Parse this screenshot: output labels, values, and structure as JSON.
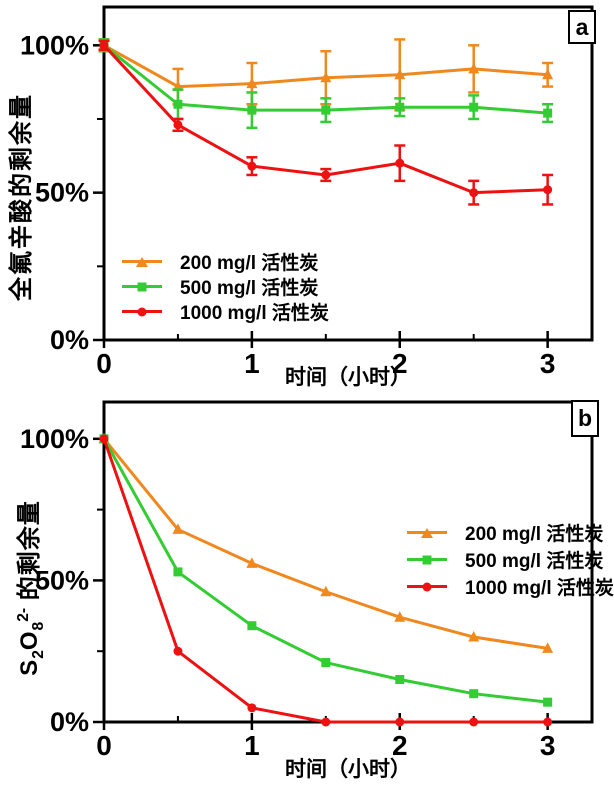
{
  "chart_data": [
    {
      "type": "line",
      "panel_label": "a",
      "title": "",
      "xlabel": "时间（小时）",
      "ylabel": "全氟辛酸的剩余量",
      "x": [
        0,
        0.5,
        1,
        1.5,
        2,
        2.5,
        3
      ],
      "xlim": [
        0,
        3.3
      ],
      "ylim": [
        0,
        113
      ],
      "grid": false,
      "legend_position": "lower-left",
      "xticks": [
        {
          "v": 0,
          "label": "0"
        },
        {
          "v": 1,
          "label": "1"
        },
        {
          "v": 2,
          "label": "2"
        },
        {
          "v": 3,
          "label": "3"
        }
      ],
      "xticks_minor": [
        0.5,
        1.5,
        2.5
      ],
      "yticks": [
        {
          "v": 0,
          "label": "0%"
        },
        {
          "v": 50,
          "label": "50%"
        },
        {
          "v": 100,
          "label": "100%"
        }
      ],
      "yticks_minor": [
        25,
        75
      ],
      "series": [
        {
          "name": "200 mg/l 活性炭",
          "color": "#F0881E",
          "marker": "triangle",
          "values": [
            100,
            86,
            87,
            89,
            90,
            92,
            90
          ],
          "errors": [
            2,
            6,
            7,
            9,
            12,
            8,
            4
          ]
        },
        {
          "name": "500 mg/l 活性炭",
          "color": "#33CC33",
          "marker": "square",
          "values": [
            100,
            80,
            78,
            78,
            79,
            79,
            77
          ],
          "errors": [
            2,
            5,
            6,
            4,
            3,
            4,
            3
          ]
        },
        {
          "name": "1000 mg/l 活性炭",
          "color": "#EE1111",
          "marker": "circle",
          "values": [
            100,
            73,
            59,
            56,
            60,
            50,
            51
          ],
          "errors": [
            1.5,
            2,
            3,
            2,
            6,
            4,
            5
          ]
        }
      ]
    },
    {
      "type": "line",
      "panel_label": "b",
      "title": "",
      "xlabel": "时间（小时）",
      "ylabel": "S₂O₈²⁻ 的剩余量",
      "ylabel_parts": [
        {
          "t": "S"
        },
        {
          "t": "2",
          "sub": true
        },
        {
          "t": "O"
        },
        {
          "t": "8",
          "sub": true
        },
        {
          "t": "2-",
          "sup": true
        },
        {
          "t": " 的剩余量"
        }
      ],
      "x": [
        0,
        0.5,
        1,
        1.5,
        2,
        2.5,
        3
      ],
      "xlim": [
        0,
        3.3
      ],
      "ylim": [
        0,
        113
      ],
      "grid": false,
      "legend_position": "center-right",
      "xticks": [
        {
          "v": 0,
          "label": "0"
        },
        {
          "v": 1,
          "label": "1"
        },
        {
          "v": 2,
          "label": "2"
        },
        {
          "v": 3,
          "label": "3"
        }
      ],
      "xticks_minor": [
        0.5,
        1.5,
        2.5
      ],
      "yticks": [
        {
          "v": 0,
          "label": "0%"
        },
        {
          "v": 50,
          "label": "50%"
        },
        {
          "v": 100,
          "label": "100%"
        }
      ],
      "yticks_minor": [
        25,
        75
      ],
      "series": [
        {
          "name": "200 mg/l 活性炭",
          "color": "#F0881E",
          "marker": "triangle",
          "values": [
            100,
            68,
            56,
            46,
            37,
            30,
            26
          ]
        },
        {
          "name": "500 mg/l 活性炭",
          "color": "#33CC33",
          "marker": "square",
          "values": [
            100,
            53,
            34,
            21,
            15,
            10,
            7
          ]
        },
        {
          "name": "1000 mg/l 活性炭",
          "color": "#EE1111",
          "marker": "circle",
          "values": [
            100,
            25,
            5,
            0,
            0,
            0,
            0
          ]
        }
      ]
    }
  ]
}
